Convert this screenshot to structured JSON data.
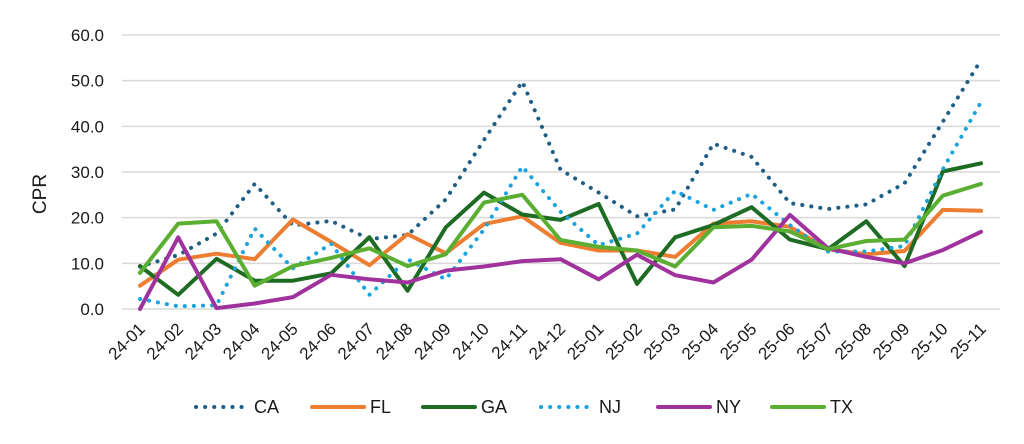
{
  "chart_data": {
    "type": "line",
    "title": "",
    "xlabel": "",
    "ylabel": "CPR",
    "ylim": [
      0,
      60
    ],
    "yticks": [
      "0.0",
      "10.0",
      "20.0",
      "30.0",
      "40.0",
      "50.0",
      "60.0"
    ],
    "ytick_values": [
      0,
      10,
      20,
      30,
      40,
      50,
      60
    ],
    "grid": true,
    "legend_position": "bottom",
    "categories": [
      "24-01",
      "24-02",
      "24-03",
      "24-04",
      "24-05",
      "24-06",
      "24-07",
      "24-08",
      "24-09",
      "24-10",
      "24-11",
      "24-12",
      "25-01",
      "25-02",
      "25-03",
      "25-04",
      "25-05",
      "25-06",
      "25-07",
      "25-08",
      "25-09",
      "25-10",
      "25-11"
    ],
    "series": [
      {
        "name": "CA",
        "color": "#1f5f87",
        "style": "dotted",
        "values": [
          9.3,
          11.8,
          16.5,
          27.4,
          18.3,
          19.3,
          15.3,
          16.2,
          24.0,
          37.0,
          49.8,
          30.5,
          25.5,
          20.3,
          21.8,
          36.2,
          33.3,
          23.2,
          21.9,
          22.9,
          27.5,
          41.0,
          54.5
        ]
      },
      {
        "name": "FL",
        "color": "#ed7d31",
        "style": "solid",
        "values": [
          5.1,
          10.8,
          12.1,
          10.9,
          19.6,
          14.7,
          9.6,
          16.4,
          12.2,
          18.6,
          20.3,
          14.5,
          12.8,
          12.8,
          11.4,
          18.7,
          19.2,
          18.0,
          13.1,
          12.0,
          12.7,
          21.7,
          21.5
        ]
      },
      {
        "name": "GA",
        "color": "#1e6b23",
        "style": "solid",
        "values": [
          9.4,
          3.1,
          11.0,
          6.2,
          6.2,
          7.8,
          15.7,
          4.0,
          17.9,
          25.5,
          20.7,
          19.5,
          23.0,
          5.5,
          15.7,
          18.4,
          22.3,
          15.2,
          13.1,
          19.2,
          9.4,
          30.1,
          31.9
        ]
      },
      {
        "name": "NJ",
        "color": "#1aa3dc",
        "style": "dotted",
        "values": [
          2.2,
          0.6,
          0.8,
          17.6,
          8.9,
          14.3,
          3.1,
          10.9,
          6.5,
          17.4,
          31.2,
          21.3,
          14.0,
          16.5,
          25.9,
          21.7,
          25.2,
          18.4,
          12.6,
          12.6,
          13.8,
          30.6,
          45.3
        ]
      },
      {
        "name": "NY",
        "color": "#a0329e",
        "style": "solid",
        "values": [
          0.0,
          15.7,
          0.2,
          1.2,
          2.6,
          7.5,
          6.5,
          5.8,
          8.4,
          9.3,
          10.5,
          10.9,
          6.5,
          11.9,
          7.4,
          5.8,
          10.8,
          20.6,
          13.3,
          11.4,
          10.0,
          12.9,
          16.9
        ]
      },
      {
        "name": "TX",
        "color": "#5aae32",
        "style": "solid",
        "values": [
          7.9,
          18.7,
          19.2,
          5.1,
          9.4,
          11.2,
          13.3,
          9.4,
          12.0,
          23.3,
          25.0,
          15.1,
          13.6,
          12.8,
          9.3,
          17.9,
          18.2,
          17.0,
          13.1,
          14.9,
          15.2,
          24.8,
          27.4
        ]
      }
    ]
  }
}
